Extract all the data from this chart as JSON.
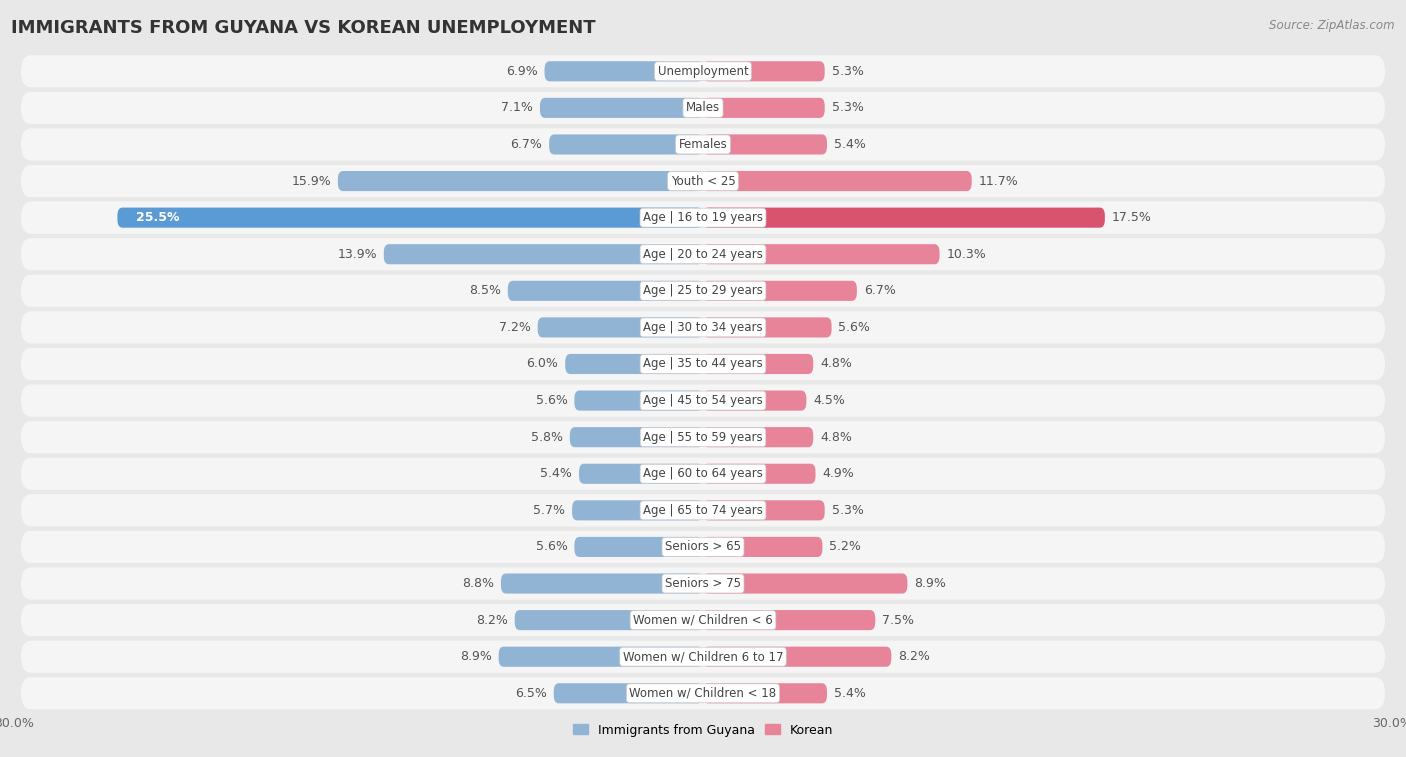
{
  "title": "IMMIGRANTS FROM GUYANA VS KOREAN UNEMPLOYMENT",
  "source": "Source: ZipAtlas.com",
  "categories": [
    "Unemployment",
    "Males",
    "Females",
    "Youth < 25",
    "Age | 16 to 19 years",
    "Age | 20 to 24 years",
    "Age | 25 to 29 years",
    "Age | 30 to 34 years",
    "Age | 35 to 44 years",
    "Age | 45 to 54 years",
    "Age | 55 to 59 years",
    "Age | 60 to 64 years",
    "Age | 65 to 74 years",
    "Seniors > 65",
    "Seniors > 75",
    "Women w/ Children < 6",
    "Women w/ Children 6 to 17",
    "Women w/ Children < 18"
  ],
  "left_values": [
    6.9,
    7.1,
    6.7,
    15.9,
    25.5,
    13.9,
    8.5,
    7.2,
    6.0,
    5.6,
    5.8,
    5.4,
    5.7,
    5.6,
    8.8,
    8.2,
    8.9,
    6.5
  ],
  "right_values": [
    5.3,
    5.3,
    5.4,
    11.7,
    17.5,
    10.3,
    6.7,
    5.6,
    4.8,
    4.5,
    4.8,
    4.9,
    5.3,
    5.2,
    8.9,
    7.5,
    8.2,
    5.4
  ],
  "left_color": "#92b4d4",
  "right_color": "#e8849a",
  "left_highlight_color": "#5b9bd5",
  "right_highlight_color": "#d9536f",
  "highlight_index": 4,
  "axis_limit": 30.0,
  "left_label": "Immigrants from Guyana",
  "right_label": "Korean",
  "bg_color": "#e8e8e8",
  "row_color": "#f5f5f5",
  "title_fontsize": 13,
  "label_fontsize": 9,
  "value_fontsize": 9,
  "source_fontsize": 8.5
}
